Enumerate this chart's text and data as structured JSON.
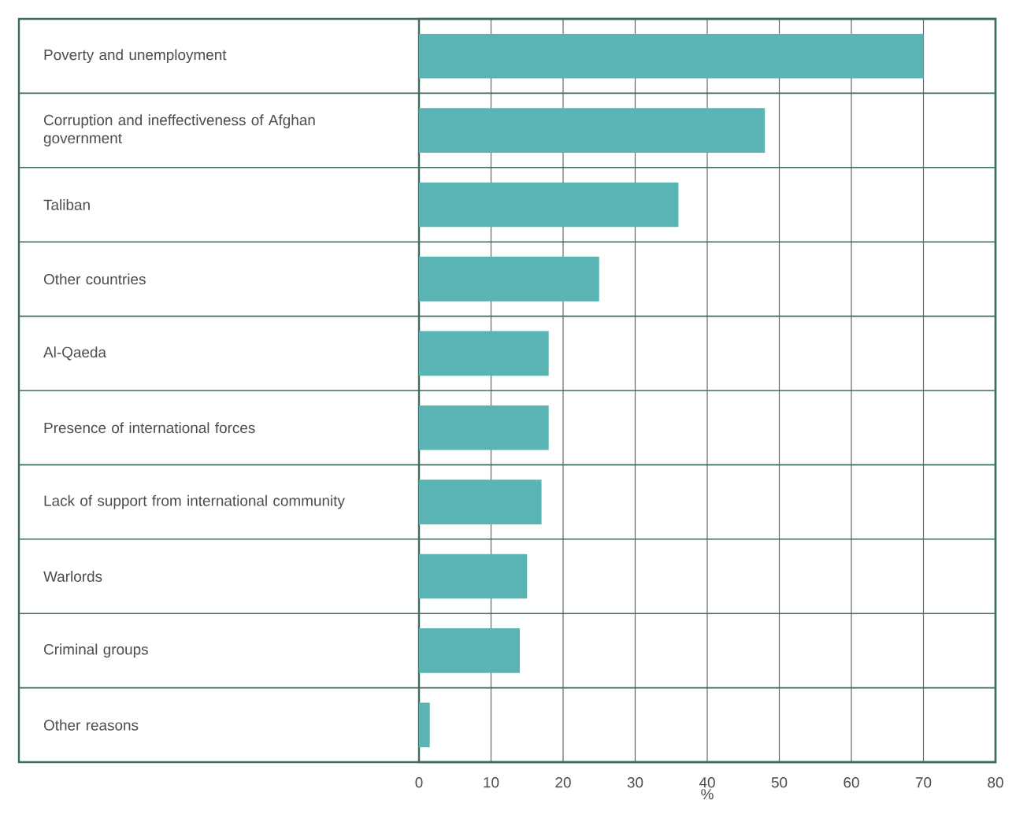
{
  "chart_data": {
    "type": "bar",
    "orientation": "horizontal",
    "categories": [
      "Poverty and unemployment",
      "Corruption and ineffectiveness of Afghan government",
      "Taliban",
      "Other countries",
      "Al-Qaeda",
      "Presence of international forces",
      "Lack of support from international community",
      "Warlords",
      "Criminal groups",
      "Other reasons"
    ],
    "values": [
      70,
      48,
      36,
      25,
      18,
      18,
      17,
      15,
      14,
      1.5
    ],
    "color": "#5bb4b4",
    "xlabel": "%",
    "xlim": [
      0,
      80
    ],
    "xticks": [
      0,
      10,
      20,
      30,
      40,
      50,
      60,
      70,
      80
    ],
    "grid": "x"
  }
}
